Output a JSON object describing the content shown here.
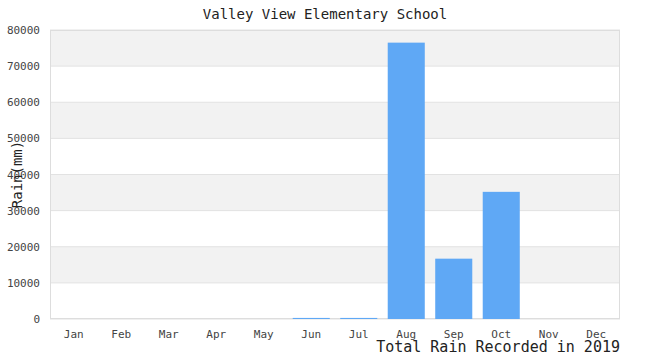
{
  "chart_data": {
    "type": "bar",
    "title": "Valley View Elementary School",
    "x_label": "Total Rain Recorded in 2019",
    "y_label": "Rain(mm)",
    "categories": [
      "Jan",
      "Feb",
      "Mar",
      "Apr",
      "May",
      "Jun",
      "Jul",
      "Aug",
      "Sep",
      "Oct",
      "Nov",
      "Dec"
    ],
    "values": [
      0,
      0,
      0,
      0,
      0,
      300,
      300,
      76500,
      16700,
      35200,
      0,
      0
    ],
    "color": "#5fa8f5",
    "ylim": [
      0,
      80000
    ],
    "yticks": [
      0,
      10000,
      20000,
      30000,
      40000,
      50000,
      60000,
      70000,
      80000
    ],
    "grid": true
  }
}
